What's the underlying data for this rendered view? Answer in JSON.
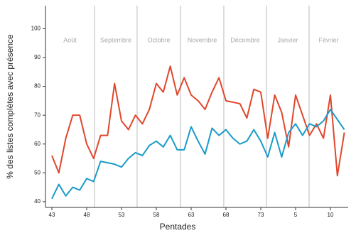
{
  "chart_data": {
    "type": "line",
    "xlabel": "Pentades",
    "ylabel": "% des listes complètes avec présence",
    "categories": [
      "43",
      null,
      null,
      null,
      null,
      "48",
      null,
      null,
      null,
      null,
      "53",
      null,
      null,
      null,
      null,
      "58",
      null,
      null,
      null,
      null,
      "63",
      null,
      null,
      null,
      null,
      "68",
      null,
      null,
      null,
      null,
      "73",
      null,
      null,
      null,
      null,
      "5",
      null,
      null,
      null,
      null,
      "10",
      null,
      null
    ],
    "months": [
      "Août",
      "Septembre",
      "Octobre",
      "Novembre",
      "Décembre",
      "Janvier",
      "Février"
    ],
    "month_separators": [
      6.12,
      12.24,
      18.47,
      24.69,
      30.82,
      36.94
    ],
    "series": [
      {
        "color": "#e0472c",
        "values": [
          56,
          50,
          62,
          70,
          70,
          60,
          55,
          63,
          63,
          81,
          68,
          65,
          70,
          67,
          72,
          81,
          78,
          87,
          77,
          83,
          77,
          75,
          72,
          78,
          83,
          75,
          74.5,
          74,
          69,
          79,
          78,
          62,
          77,
          71,
          59,
          77,
          70,
          63,
          67,
          62,
          77,
          49,
          64
        ]
      },
      {
        "color": "#1b9bc8",
        "values": [
          41,
          46,
          42,
          45,
          44,
          48,
          47,
          54,
          53.5,
          53,
          52,
          55,
          57,
          56,
          59.5,
          61,
          59,
          63,
          58,
          58,
          66,
          61,
          56.5,
          65.5,
          63,
          65,
          62,
          60,
          61,
          65,
          61,
          55.5,
          64,
          55.5,
          64,
          67,
          63,
          67,
          66,
          68,
          72,
          68.5,
          65
        ]
      }
    ],
    "ylim": [
      38,
      108
    ],
    "yticks": [
      40,
      50,
      60,
      70,
      80,
      90,
      100
    ]
  }
}
